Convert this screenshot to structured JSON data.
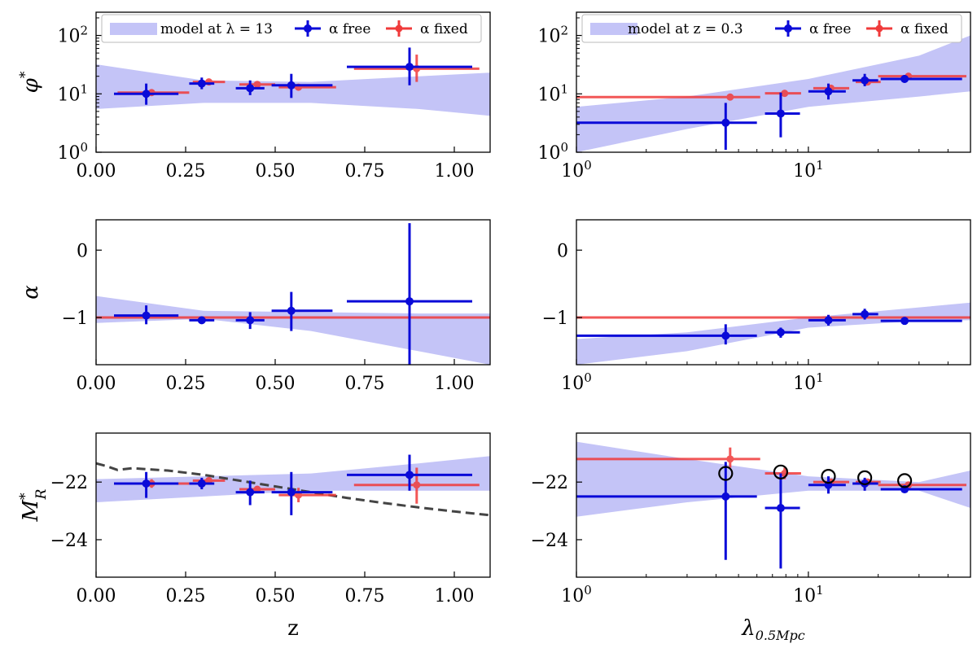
{
  "figure": {
    "xlabel_left": "z",
    "xlabel_right": "λ",
    "xlabel_right_sub": "0.5Mpc"
  },
  "colors": {
    "free": "#0a0ad8",
    "fixed": "#f03a3a",
    "band": "#c4c4f7",
    "dash": "#444444"
  },
  "legends": {
    "left": {
      "band": "model at λ = 13",
      "free": "α free",
      "fixed": "α fixed"
    },
    "right": {
      "band": "model at z = 0.3",
      "free": "α free",
      "fixed": "α fixed"
    }
  },
  "chart_data": [
    {
      "id": "phi_z",
      "type": "scatter",
      "xscale": "linear",
      "yscale": "log",
      "xlim": [
        0,
        1.1
      ],
      "ylim": [
        1,
        250
      ],
      "xticks": [
        {
          "v": 0,
          "t": "0.00"
        },
        {
          "v": 0.25,
          "t": "0.25"
        },
        {
          "v": 0.5,
          "t": "0.50"
        },
        {
          "v": 0.75,
          "t": "0.75"
        },
        {
          "v": 1.0,
          "t": "1.00"
        }
      ],
      "yticks": [
        {
          "v": 1,
          "b": "10",
          "e": "0"
        },
        {
          "v": 10,
          "b": "10",
          "e": "1"
        },
        {
          "v": 100,
          "b": "10",
          "e": "2"
        }
      ],
      "ylabel": "φ",
      "ylabel_sup": "*",
      "band": {
        "x": [
          0,
          0.3,
          0.6,
          0.9,
          1.1
        ],
        "lo": [
          5.5,
          7,
          7,
          5.5,
          4.2
        ],
        "hi": [
          32,
          17,
          16,
          20,
          23
        ]
      },
      "series": [
        {
          "name": "α free",
          "points": [
            {
              "x": 0.14,
              "y": 10,
              "xlo": 0.05,
              "xhi": 0.23,
              "ylo": 6.5,
              "yhi": 15
            },
            {
              "x": 0.295,
              "y": 15,
              "xlo": 0.26,
              "xhi": 0.33,
              "ylo": 12,
              "yhi": 19
            },
            {
              "x": 0.43,
              "y": 12.5,
              "xlo": 0.39,
              "xhi": 0.47,
              "ylo": 9.5,
              "yhi": 17
            },
            {
              "x": 0.545,
              "y": 14,
              "xlo": 0.49,
              "xhi": 0.66,
              "ylo": 8.5,
              "yhi": 22
            },
            {
              "x": 0.875,
              "y": 29,
              "xlo": 0.7,
              "xhi": 1.05,
              "ylo": 14,
              "yhi": 62
            }
          ]
        },
        {
          "name": "α fixed",
          "points": [
            {
              "x": 0.155,
              "y": 10.5,
              "xlo": 0.06,
              "xhi": 0.26,
              "ylo": 9.5,
              "yhi": 11.5
            },
            {
              "x": 0.315,
              "y": 16,
              "xlo": 0.27,
              "xhi": 0.36,
              "ylo": 14.5,
              "yhi": 17.5
            },
            {
              "x": 0.45,
              "y": 14.5,
              "xlo": 0.4,
              "xhi": 0.5,
              "ylo": 13,
              "yhi": 16
            },
            {
              "x": 0.565,
              "y": 13,
              "xlo": 0.51,
              "xhi": 0.67,
              "ylo": 11.5,
              "yhi": 14.5
            },
            {
              "x": 0.895,
              "y": 27,
              "xlo": 0.72,
              "xhi": 1.07,
              "ylo": 16,
              "yhi": 47
            }
          ]
        }
      ]
    },
    {
      "id": "phi_lambda",
      "type": "scatter",
      "xscale": "log",
      "yscale": "log",
      "xlim": [
        1,
        50
      ],
      "ylim": [
        1,
        250
      ],
      "xticks": [
        {
          "v": 1,
          "b": "10",
          "e": "0"
        },
        {
          "v": 10,
          "b": "10",
          "e": "1"
        }
      ],
      "yticks": [
        {
          "v": 1,
          "b": "10",
          "e": "0"
        },
        {
          "v": 10,
          "b": "10",
          "e": "1"
        },
        {
          "v": 100,
          "b": "10",
          "e": "2"
        }
      ],
      "band": {
        "x": [
          1,
          3,
          10,
          30,
          50
        ],
        "lo": [
          1,
          2.5,
          6,
          9,
          11
        ],
        "hi": [
          6,
          9,
          18,
          45,
          100
        ]
      },
      "series": [
        {
          "name": "α free",
          "points": [
            {
              "x": 4.4,
              "y": 3.2,
              "xlo": 1,
              "xhi": 6.0,
              "ylo": 1.1,
              "yhi": 7
            },
            {
              "x": 7.6,
              "y": 4.6,
              "xlo": 6.5,
              "xhi": 9.2,
              "ylo": 1.8,
              "yhi": 10.5
            },
            {
              "x": 12.2,
              "y": 11,
              "xlo": 10,
              "xhi": 14.5,
              "ylo": 8,
              "yhi": 15
            },
            {
              "x": 17.5,
              "y": 17,
              "xlo": 15.5,
              "xhi": 20,
              "ylo": 13.5,
              "yhi": 22
            },
            {
              "x": 26,
              "y": 18,
              "xlo": 20.5,
              "xhi": 46,
              "ylo": 15.5,
              "yhi": 21
            }
          ]
        },
        {
          "name": "α fixed",
          "points": [
            {
              "x": 4.6,
              "y": 8.8,
              "xlo": 1,
              "xhi": 6.2,
              "ylo": 7.8,
              "yhi": 10
            },
            {
              "x": 7.9,
              "y": 10.2,
              "xlo": 6.5,
              "xhi": 9.3,
              "ylo": 9.6,
              "yhi": 10.8
            },
            {
              "x": 12.5,
              "y": 12.5,
              "xlo": 10.5,
              "xhi": 15,
              "ylo": 11.5,
              "yhi": 13.5
            },
            {
              "x": 18,
              "y": 16,
              "xlo": 16,
              "xhi": 20.5,
              "ylo": 15,
              "yhi": 17
            },
            {
              "x": 27,
              "y": 20,
              "xlo": 20,
              "xhi": 48,
              "ylo": 19,
              "yhi": 21
            }
          ]
        }
      ]
    },
    {
      "id": "alpha_z",
      "type": "scatter",
      "xscale": "linear",
      "yscale": "linear",
      "xlim": [
        0,
        1.1
      ],
      "ylim": [
        -1.7,
        0.45
      ],
      "xticks": [
        {
          "v": 0,
          "t": "0.00"
        },
        {
          "v": 0.25,
          "t": "0.25"
        },
        {
          "v": 0.5,
          "t": "0.50"
        },
        {
          "v": 0.75,
          "t": "0.75"
        },
        {
          "v": 1.0,
          "t": "1.00"
        }
      ],
      "yticks": [
        {
          "v": 0,
          "t": "0"
        },
        {
          "v": -1,
          "t": "−1"
        }
      ],
      "ylabel": "α",
      "band": {
        "x": [
          0,
          0.3,
          0.6,
          0.9,
          1.1
        ],
        "lo": [
          -1.08,
          -1.02,
          -1.2,
          -1.5,
          -1.7
        ],
        "hi": [
          -0.68,
          -0.9,
          -0.92,
          -0.94,
          -0.94
        ]
      },
      "hline": -1.0,
      "series": [
        {
          "name": "α free",
          "points": [
            {
              "x": 0.14,
              "y": -0.97,
              "xlo": 0.05,
              "xhi": 0.23,
              "ylo": -1.1,
              "yhi": -0.82
            },
            {
              "x": 0.295,
              "y": -1.04,
              "xlo": 0.26,
              "xhi": 0.33,
              "ylo": -1.08,
              "yhi": -1.0
            },
            {
              "x": 0.43,
              "y": -1.04,
              "xlo": 0.39,
              "xhi": 0.47,
              "ylo": -1.17,
              "yhi": -0.92
            },
            {
              "x": 0.545,
              "y": -0.9,
              "xlo": 0.49,
              "xhi": 0.66,
              "ylo": -1.2,
              "yhi": -0.62
            },
            {
              "x": 0.875,
              "y": -0.76,
              "xlo": 0.7,
              "xhi": 1.05,
              "ylo": -1.7,
              "yhi": 0.4
            }
          ]
        }
      ]
    },
    {
      "id": "alpha_lambda",
      "type": "scatter",
      "xscale": "log",
      "yscale": "linear",
      "xlim": [
        1,
        50
      ],
      "ylim": [
        -1.7,
        0.45
      ],
      "xticks": [
        {
          "v": 1,
          "b": "10",
          "e": "0"
        },
        {
          "v": 10,
          "b": "10",
          "e": "1"
        }
      ],
      "yticks": [
        {
          "v": 0,
          "t": "0"
        },
        {
          "v": -1,
          "t": "−1"
        }
      ],
      "band": {
        "x": [
          1,
          3,
          10,
          30,
          50
        ],
        "lo": [
          -1.7,
          -1.5,
          -1.15,
          -1.05,
          -1.04
        ],
        "hi": [
          -1.32,
          -1.22,
          -1.0,
          -0.85,
          -0.78
        ]
      },
      "hline": -1.0,
      "series": [
        {
          "name": "α free",
          "points": [
            {
              "x": 4.4,
              "y": -1.27,
              "xlo": 1,
              "xhi": 6.0,
              "ylo": -1.4,
              "yhi": -1.1
            },
            {
              "x": 7.6,
              "y": -1.22,
              "xlo": 6.5,
              "xhi": 9.2,
              "ylo": -1.3,
              "yhi": -1.15
            },
            {
              "x": 12.2,
              "y": -1.04,
              "xlo": 10,
              "xhi": 14.5,
              "ylo": -1.12,
              "yhi": -0.96
            },
            {
              "x": 17.5,
              "y": -0.95,
              "xlo": 15.5,
              "xhi": 20,
              "ylo": -1.03,
              "yhi": -0.87
            },
            {
              "x": 26,
              "y": -1.05,
              "xlo": 20.5,
              "xhi": 46,
              "ylo": -1.08,
              "yhi": -1.02
            }
          ]
        }
      ]
    },
    {
      "id": "mr_z",
      "type": "scatter",
      "xscale": "linear",
      "yscale": "linear",
      "xlim": [
        0,
        1.1
      ],
      "ylim": [
        -25.3,
        -20.3
      ],
      "xticks": [
        {
          "v": 0,
          "t": "0.00"
        },
        {
          "v": 0.25,
          "t": "0.25"
        },
        {
          "v": 0.5,
          "t": "0.50"
        },
        {
          "v": 0.75,
          "t": "0.75"
        },
        {
          "v": 1.0,
          "t": "1.00"
        }
      ],
      "yticks": [
        {
          "v": -22,
          "t": "−22"
        },
        {
          "v": -24,
          "t": "−24"
        }
      ],
      "ylabel": "M",
      "ylabel_sup": "*",
      "ylabel_sub": "R",
      "band": {
        "x": [
          0,
          0.3,
          0.6,
          0.9,
          1.1
        ],
        "lo": [
          -22.7,
          -22.5,
          -22.3,
          -22.3,
          -22.3
        ],
        "hi": [
          -21.9,
          -21.8,
          -21.7,
          -21.35,
          -21.1
        ]
      },
      "dashed": {
        "x": [
          0,
          0.03,
          0.06,
          0.1,
          0.2,
          0.3,
          0.4,
          0.5,
          0.6,
          0.7,
          0.8,
          0.9,
          1.0,
          1.1
        ],
        "y": [
          -21.35,
          -21.45,
          -21.58,
          -21.52,
          -21.6,
          -21.75,
          -21.95,
          -22.15,
          -22.35,
          -22.55,
          -22.72,
          -22.88,
          -23.02,
          -23.15
        ]
      },
      "series": [
        {
          "name": "α free",
          "points": [
            {
              "x": 0.14,
              "y": -22.05,
              "xlo": 0.05,
              "xhi": 0.23,
              "ylo": -22.55,
              "yhi": -21.65
            },
            {
              "x": 0.295,
              "y": -22.05,
              "xlo": 0.26,
              "xhi": 0.33,
              "ylo": -22.25,
              "yhi": -21.85
            },
            {
              "x": 0.43,
              "y": -22.35,
              "xlo": 0.39,
              "xhi": 0.47,
              "ylo": -22.8,
              "yhi": -21.95
            },
            {
              "x": 0.545,
              "y": -22.35,
              "xlo": 0.49,
              "xhi": 0.66,
              "ylo": -23.15,
              "yhi": -21.65
            },
            {
              "x": 0.875,
              "y": -21.75,
              "xlo": 0.7,
              "xhi": 1.05,
              "ylo": -22.3,
              "yhi": -21.05
            }
          ]
        },
        {
          "name": "α fixed",
          "points": [
            {
              "x": 0.155,
              "y": -22.05,
              "xlo": 0.06,
              "xhi": 0.26,
              "ylo": -22.2,
              "yhi": -21.9
            },
            {
              "x": 0.315,
              "y": -21.95,
              "xlo": 0.27,
              "xhi": 0.36,
              "ylo": -22.05,
              "yhi": -21.85
            },
            {
              "x": 0.45,
              "y": -22.25,
              "xlo": 0.4,
              "xhi": 0.5,
              "ylo": -22.35,
              "yhi": -22.15
            },
            {
              "x": 0.565,
              "y": -22.45,
              "xlo": 0.51,
              "xhi": 0.67,
              "ylo": -22.7,
              "yhi": -22.2
            },
            {
              "x": 0.895,
              "y": -22.1,
              "xlo": 0.72,
              "xhi": 1.07,
              "ylo": -22.75,
              "yhi": -21.5
            }
          ]
        }
      ]
    },
    {
      "id": "mr_lambda",
      "type": "scatter",
      "xscale": "log",
      "yscale": "linear",
      "xlim": [
        1,
        50
      ],
      "ylim": [
        -25.3,
        -20.3
      ],
      "xticks": [
        {
          "v": 1,
          "b": "10",
          "e": "0"
        },
        {
          "v": 10,
          "b": "10",
          "e": "1"
        }
      ],
      "yticks": [
        {
          "v": -22,
          "t": "−22"
        },
        {
          "v": -24,
          "t": "−24"
        }
      ],
      "band": {
        "x": [
          1,
          3,
          10,
          30,
          50
        ],
        "lo": [
          -23.2,
          -22.7,
          -22.3,
          -22.3,
          -22.9
        ],
        "hi": [
          -20.6,
          -21.2,
          -21.8,
          -22.0,
          -21.6
        ]
      },
      "series": [
        {
          "name": "α free",
          "points": [
            {
              "x": 4.4,
              "y": -22.5,
              "xlo": 1,
              "xhi": 6.0,
              "ylo": -24.7,
              "yhi": -21.3
            },
            {
              "x": 7.6,
              "y": -22.9,
              "xlo": 6.5,
              "xhi": 9.2,
              "ylo": -25.0,
              "yhi": -21.7
            },
            {
              "x": 12.2,
              "y": -22.1,
              "xlo": 10,
              "xhi": 14.5,
              "ylo": -22.4,
              "yhi": -21.8
            },
            {
              "x": 17.5,
              "y": -22.05,
              "xlo": 15.5,
              "xhi": 20,
              "ylo": -22.3,
              "yhi": -21.85
            },
            {
              "x": 26,
              "y": -22.25,
              "xlo": 20.5,
              "xhi": 46,
              "ylo": -22.35,
              "yhi": -22.15
            }
          ]
        },
        {
          "name": "α fixed",
          "points": [
            {
              "x": 4.6,
              "y": -21.2,
              "xlo": 1,
              "xhi": 6.2,
              "ylo": -21.5,
              "yhi": -20.8
            },
            {
              "x": 7.9,
              "y": -21.7,
              "xlo": 6.5,
              "xhi": 9.3,
              "ylo": -21.9,
              "yhi": -21.5
            },
            {
              "x": 12.5,
              "y": -22.0,
              "xlo": 10.5,
              "xhi": 15,
              "ylo": -22.1,
              "yhi": -21.9
            },
            {
              "x": 18,
              "y": -22.0,
              "xlo": 16,
              "xhi": 20.5,
              "ylo": -22.1,
              "yhi": -21.9
            },
            {
              "x": 27,
              "y": -22.1,
              "xlo": 20,
              "xhi": 48,
              "ylo": -22.15,
              "yhi": -22.05
            }
          ]
        }
      ],
      "circles": [
        {
          "x": 4.4,
          "y": -21.7
        },
        {
          "x": 7.6,
          "y": -21.65
        },
        {
          "x": 12.2,
          "y": -21.8
        },
        {
          "x": 17.5,
          "y": -21.85
        },
        {
          "x": 26,
          "y": -21.95
        }
      ]
    }
  ]
}
